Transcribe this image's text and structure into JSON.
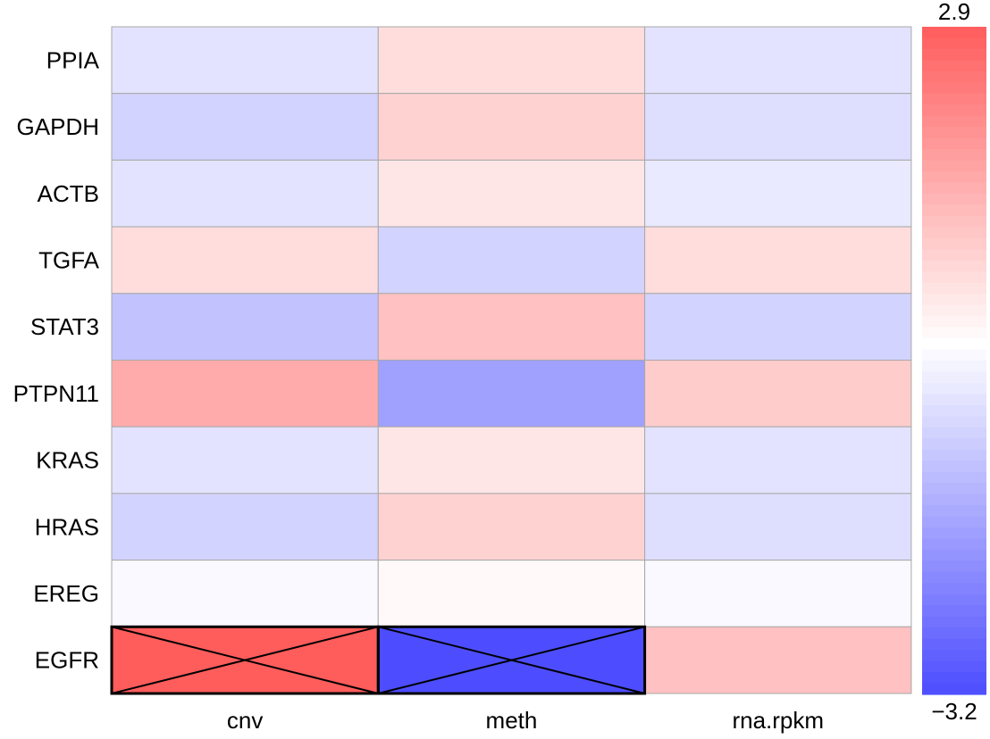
{
  "chart_data": {
    "type": "heatmap",
    "rows": [
      "PPIA",
      "GAPDH",
      "ACTB",
      "TGFA",
      "STAT3",
      "PTPN11",
      "KRAS",
      "HRAS",
      "EREG",
      "EGFR"
    ],
    "columns": [
      "cnv",
      "meth",
      "rna.rpkm"
    ],
    "values": [
      [
        -0.5,
        0.6,
        -0.5
      ],
      [
        -0.8,
        0.8,
        -0.6
      ],
      [
        -0.5,
        0.45,
        -0.4
      ],
      [
        0.6,
        -0.8,
        0.6
      ],
      [
        -1.1,
        1.1,
        -0.8
      ],
      [
        1.5,
        -1.7,
        0.9
      ],
      [
        -0.5,
        0.45,
        -0.5
      ],
      [
        -0.8,
        0.8,
        -0.6
      ],
      [
        -0.1,
        0.1,
        -0.1
      ],
      [
        2.9,
        -3.2,
        1.1
      ]
    ],
    "highlighted_cells": [
      [
        9,
        0
      ],
      [
        9,
        1
      ]
    ],
    "color_scale": {
      "min": -3.2,
      "max": 2.9,
      "min_label": "−3.2",
      "max_label": "2.9",
      "low_color": "#4d4dff",
      "mid_color": "#ffffff",
      "high_color": "#ff5c5c"
    },
    "grid": true,
    "legend_position": "right"
  }
}
